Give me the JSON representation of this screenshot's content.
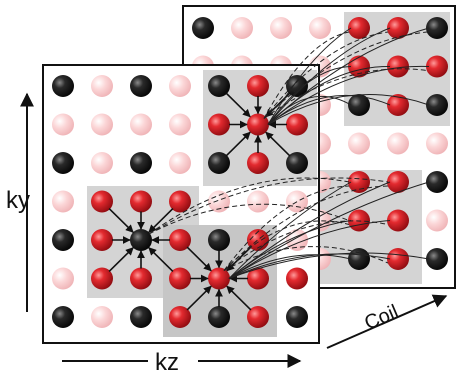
{
  "labels": {
    "ky": "ky",
    "kz": "kz",
    "coil": "Coil"
  },
  "colors": {
    "acquired_black": "#1e1e1e",
    "target_red": "#e0262c",
    "missing_pink": "#f6c9cb",
    "highlight_box": "#d4d4d4",
    "frame": "#111111"
  },
  "grids": {
    "front": {
      "rows": [
        [
          "black",
          "pink",
          "black",
          "pink",
          "black",
          "red",
          "black"
        ],
        [
          "pink",
          "pink",
          "pink",
          "pink",
          "red",
          "red",
          "red"
        ],
        [
          "black",
          "pink",
          "black",
          "pink",
          "black",
          "red",
          "black"
        ],
        [
          "pink",
          "red",
          "red",
          "red",
          "pink",
          "pink",
          "pink"
        ],
        [
          "black",
          "red",
          "black",
          "red",
          "black",
          "red",
          "pink"
        ],
        [
          "pink",
          "red",
          "red",
          "red",
          "red",
          "red",
          "red"
        ],
        [
          "black",
          "pink",
          "black",
          "red",
          "black",
          "red",
          "black"
        ]
      ]
    },
    "back": {
      "rows": [
        [
          "black",
          "pink",
          "pink",
          "pink",
          "red",
          "red",
          "black"
        ],
        [
          "pink",
          "pink",
          "pink",
          "pink",
          "red",
          "red",
          "red"
        ],
        [
          "black",
          "pink",
          "pink",
          "pink",
          "black",
          "red",
          "black"
        ],
        [
          "pink",
          "pink",
          "pink",
          "pink",
          "pink",
          "pink",
          "pink"
        ],
        [
          "black",
          "pink",
          "pink",
          "pink",
          "red",
          "red",
          "black"
        ],
        [
          "pink",
          "pink",
          "pink",
          "pink",
          "red",
          "red",
          "pink"
        ],
        [
          "black",
          "pink",
          "pink",
          "pink",
          "black",
          "red",
          "black"
        ]
      ]
    }
  }
}
